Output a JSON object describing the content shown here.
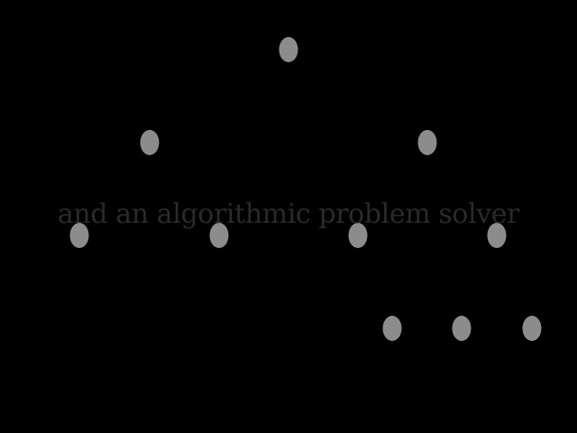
{
  "caption": "and an algorithmic problem solver",
  "colors": {
    "background": "#000000",
    "node": "#8c8c8c",
    "caption": "#2a2a2a"
  }
}
